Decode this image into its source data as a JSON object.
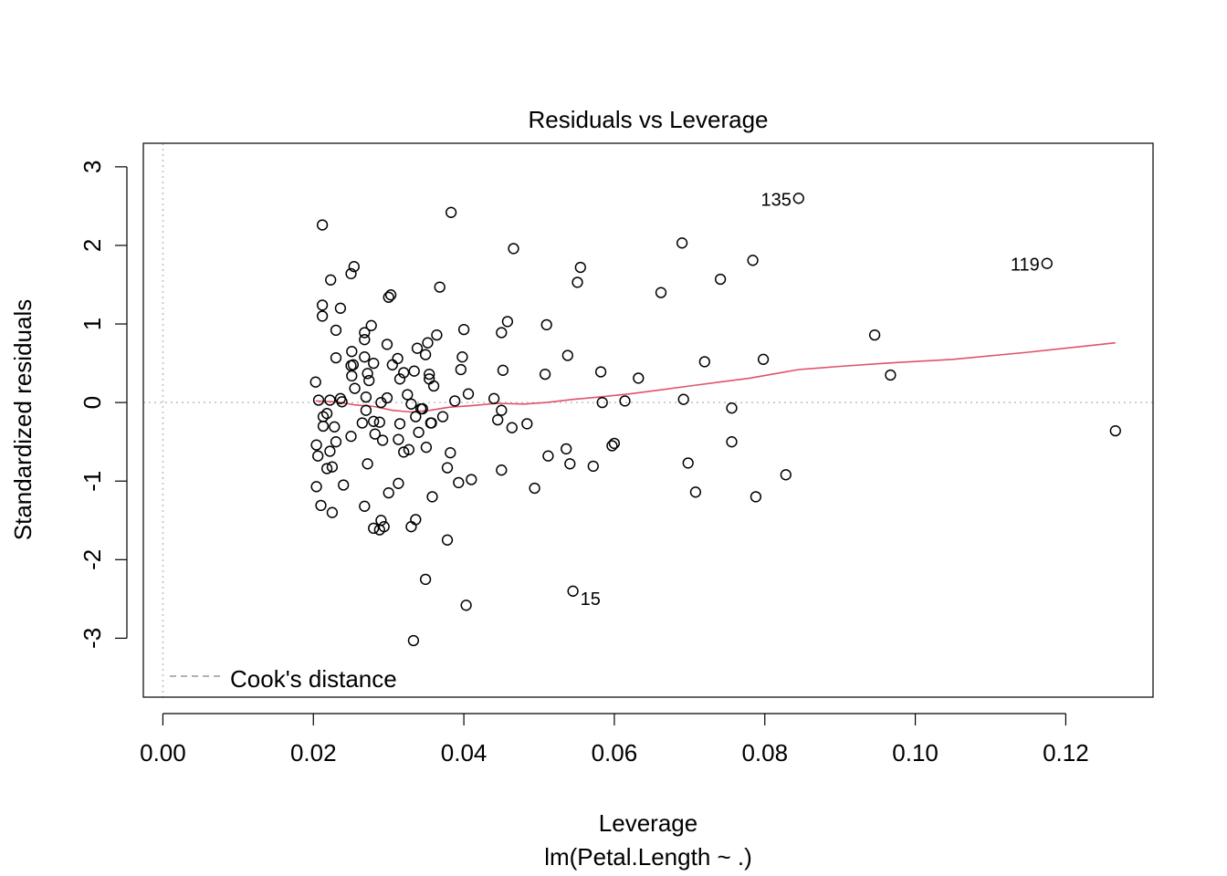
{
  "chart_data": {
    "type": "scatter",
    "title": "Residuals vs Leverage",
    "xlabel": "Leverage",
    "subtitle": "lm(Petal.Length ~ .)",
    "ylabel": "Standardized residuals",
    "xlim": [
      -0.0026,
      0.1316
    ],
    "ylim": [
      -3.75,
      3.3
    ],
    "x_ticks": [
      0,
      0.02,
      0.04,
      0.06,
      0.08,
      0.1,
      0.12
    ],
    "x_tick_labels": [
      "0.00",
      "0.02",
      "0.04",
      "0.06",
      "0.08",
      "0.10",
      "0.12"
    ],
    "y_ticks": [
      -3,
      -2,
      -1,
      0,
      1,
      2,
      3
    ],
    "y_tick_labels": [
      "-3",
      "-2",
      "-1",
      "0",
      "1",
      "2",
      "3"
    ],
    "legend": {
      "label": "Cook's distance",
      "position": "bottom-left",
      "line_style": "dashed"
    },
    "colors": {
      "points": "#000000",
      "smoother": "#DF536B",
      "reference": "#BEBEBE",
      "legend_text": "#999999"
    },
    "labeled_points": [
      {
        "x": 0.0845,
        "y": 2.6,
        "label": "135",
        "side": "left"
      },
      {
        "x": 0.1175,
        "y": 1.77,
        "label": "119",
        "side": "left"
      },
      {
        "x": 0.0545,
        "y": -2.4,
        "label": "15",
        "side": "right"
      }
    ],
    "points": [
      [
        0.0203,
        0.26
      ],
      [
        0.0207,
        0.03
      ],
      [
        0.0212,
        2.26
      ],
      [
        0.0212,
        1.24
      ],
      [
        0.0212,
        1.1
      ],
      [
        0.0204,
        -0.54
      ],
      [
        0.0206,
        -0.68
      ],
      [
        0.0204,
        -1.07
      ],
      [
        0.021,
        -1.31
      ],
      [
        0.0213,
        -0.18
      ],
      [
        0.0213,
        -0.3
      ],
      [
        0.0218,
        -0.14
      ],
      [
        0.0218,
        -0.84
      ],
      [
        0.0222,
        -0.62
      ],
      [
        0.0222,
        0.03
      ],
      [
        0.0223,
        1.56
      ],
      [
        0.0225,
        -0.82
      ],
      [
        0.0225,
        -1.4
      ],
      [
        0.0228,
        -0.31
      ],
      [
        0.023,
        -0.5
      ],
      [
        0.023,
        0.92
      ],
      [
        0.023,
        0.57
      ],
      [
        0.0236,
        1.2
      ],
      [
        0.0236,
        0.05
      ],
      [
        0.0238,
        0.01
      ],
      [
        0.024,
        -1.05
      ],
      [
        0.025,
        1.64
      ],
      [
        0.0254,
        1.73
      ],
      [
        0.0251,
        0.65
      ],
      [
        0.025,
        0.47
      ],
      [
        0.0253,
        0.48
      ],
      [
        0.0251,
        0.34
      ],
      [
        0.0255,
        0.18
      ],
      [
        0.025,
        -0.43
      ],
      [
        0.0265,
        -0.26
      ],
      [
        0.0268,
        -1.32
      ],
      [
        0.0268,
        0.89
      ],
      [
        0.0268,
        0.8
      ],
      [
        0.0268,
        0.58
      ],
      [
        0.0272,
        0.37
      ],
      [
        0.027,
        0.07
      ],
      [
        0.027,
        -0.1
      ],
      [
        0.0272,
        -0.78
      ],
      [
        0.0274,
        0.28
      ],
      [
        0.0277,
        0.98
      ],
      [
        0.028,
        0.5
      ],
      [
        0.028,
        -0.24
      ],
      [
        0.0282,
        -0.4
      ],
      [
        0.028,
        -1.6
      ],
      [
        0.0288,
        -1.62
      ],
      [
        0.0288,
        -0.25
      ],
      [
        0.029,
        0.0
      ],
      [
        0.029,
        -1.5
      ],
      [
        0.0292,
        -0.48
      ],
      [
        0.0294,
        -1.58
      ],
      [
        0.0298,
        0.74
      ],
      [
        0.0298,
        0.06
      ],
      [
        0.03,
        1.34
      ],
      [
        0.0303,
        1.37
      ],
      [
        0.03,
        -1.15
      ],
      [
        0.0305,
        0.48
      ],
      [
        0.0312,
        0.56
      ],
      [
        0.0313,
        -0.47
      ],
      [
        0.0313,
        -1.03
      ],
      [
        0.0315,
        -0.27
      ],
      [
        0.0315,
        0.3
      ],
      [
        0.032,
        -0.63
      ],
      [
        0.032,
        0.38
      ],
      [
        0.0325,
        0.1
      ],
      [
        0.0327,
        -0.6
      ],
      [
        0.033,
        -1.58
      ],
      [
        0.033,
        -0.02
      ],
      [
        0.0333,
        -3.03
      ],
      [
        0.0334,
        0.4
      ],
      [
        0.0336,
        -1.49
      ],
      [
        0.0336,
        -0.18
      ],
      [
        0.0338,
        0.69
      ],
      [
        0.034,
        -0.38
      ],
      [
        0.0343,
        -0.08
      ],
      [
        0.0345,
        -0.08
      ],
      [
        0.0349,
        -2.25
      ],
      [
        0.0349,
        0.61
      ],
      [
        0.035,
        -0.57
      ],
      [
        0.0352,
        0.76
      ],
      [
        0.0354,
        0.36
      ],
      [
        0.0354,
        0.3
      ],
      [
        0.0356,
        -0.26
      ],
      [
        0.0357,
        -0.26
      ],
      [
        0.0358,
        -1.2
      ],
      [
        0.036,
        0.21
      ],
      [
        0.0364,
        0.86
      ],
      [
        0.0368,
        1.47
      ],
      [
        0.0372,
        -0.18
      ],
      [
        0.0378,
        -0.83
      ],
      [
        0.0378,
        -1.75
      ],
      [
        0.0382,
        -0.64
      ],
      [
        0.0383,
        2.42
      ],
      [
        0.0388,
        0.02
      ],
      [
        0.0393,
        -1.02
      ],
      [
        0.0396,
        0.42
      ],
      [
        0.0398,
        0.58
      ],
      [
        0.04,
        0.93
      ],
      [
        0.0403,
        -2.58
      ],
      [
        0.0406,
        0.11
      ],
      [
        0.041,
        -0.98
      ],
      [
        0.044,
        0.05
      ],
      [
        0.0445,
        -0.22
      ],
      [
        0.045,
        0.89
      ],
      [
        0.045,
        -0.86
      ],
      [
        0.045,
        -0.1
      ],
      [
        0.0452,
        0.41
      ],
      [
        0.0458,
        1.03
      ],
      [
        0.0464,
        -0.32
      ],
      [
        0.0466,
        1.96
      ],
      [
        0.0484,
        -0.27
      ],
      [
        0.0494,
        -1.09
      ],
      [
        0.0508,
        0.36
      ],
      [
        0.051,
        0.99
      ],
      [
        0.0512,
        -0.68
      ],
      [
        0.0536,
        -0.59
      ],
      [
        0.0538,
        0.6
      ],
      [
        0.0541,
        -0.78
      ],
      [
        0.0545,
        -2.4
      ],
      [
        0.0551,
        1.53
      ],
      [
        0.0555,
        1.72
      ],
      [
        0.0572,
        -0.81
      ],
      [
        0.0582,
        0.39
      ],
      [
        0.0584,
        0.0
      ],
      [
        0.0597,
        -0.55
      ],
      [
        0.06,
        -0.52
      ],
      [
        0.0614,
        0.02
      ],
      [
        0.0632,
        0.31
      ],
      [
        0.0662,
        1.4
      ],
      [
        0.069,
        2.03
      ],
      [
        0.0692,
        0.04
      ],
      [
        0.0698,
        -0.77
      ],
      [
        0.0708,
        -1.14
      ],
      [
        0.072,
        0.52
      ],
      [
        0.0741,
        1.57
      ],
      [
        0.0756,
        -0.07
      ],
      [
        0.0756,
        -0.5
      ],
      [
        0.0784,
        1.81
      ],
      [
        0.0788,
        -1.2
      ],
      [
        0.0798,
        0.55
      ],
      [
        0.0828,
        -0.92
      ],
      [
        0.0845,
        2.6
      ],
      [
        0.0946,
        0.86
      ],
      [
        0.0967,
        0.35
      ],
      [
        0.1175,
        1.77
      ],
      [
        0.1266,
        -0.36
      ]
    ],
    "smoother": [
      [
        0.0203,
        0.02
      ],
      [
        0.023,
        0.01
      ],
      [
        0.0255,
        -0.03
      ],
      [
        0.028,
        -0.05
      ],
      [
        0.0305,
        -0.1
      ],
      [
        0.033,
        -0.12
      ],
      [
        0.0355,
        -0.1
      ],
      [
        0.038,
        -0.06
      ],
      [
        0.041,
        -0.04
      ],
      [
        0.0445,
        -0.01
      ],
      [
        0.048,
        -0.02
      ],
      [
        0.051,
        0.0
      ],
      [
        0.0545,
        0.04
      ],
      [
        0.058,
        0.07
      ],
      [
        0.062,
        0.11
      ],
      [
        0.066,
        0.16
      ],
      [
        0.07,
        0.21
      ],
      [
        0.074,
        0.26
      ],
      [
        0.078,
        0.31
      ],
      [
        0.081,
        0.36
      ],
      [
        0.0845,
        0.42
      ],
      [
        0.09,
        0.46
      ],
      [
        0.096,
        0.5
      ],
      [
        0.105,
        0.55
      ],
      [
        0.115,
        0.64
      ],
      [
        0.1266,
        0.76
      ]
    ]
  }
}
